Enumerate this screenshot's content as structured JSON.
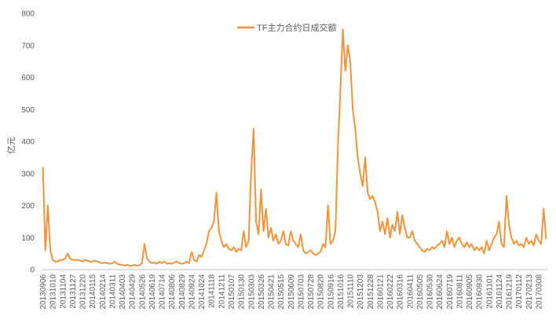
{
  "chart_data": {
    "type": "line",
    "y_label": "亿元",
    "series": [
      {
        "name": "TF主力合约日成交额",
        "color": "#f39339",
        "values": [
          320,
          60,
          200,
          60,
          30,
          25,
          25,
          30,
          30,
          35,
          50,
          35,
          30,
          30,
          30,
          28,
          25,
          30,
          28,
          25,
          25,
          28,
          25,
          22,
          20,
          22,
          20,
          18,
          20,
          25,
          18,
          15,
          15,
          12,
          15,
          12,
          12,
          15,
          12,
          14,
          20,
          80,
          35,
          25,
          20,
          22,
          18,
          25,
          20,
          25,
          18,
          20,
          18,
          22,
          25,
          20,
          18,
          20,
          25,
          20,
          55,
          30,
          25,
          45,
          40,
          60,
          80,
          120,
          130,
          150,
          240,
          120,
          90,
          70,
          80,
          65,
          60,
          70,
          55,
          65,
          60,
          120,
          70,
          90,
          300,
          440,
          150,
          110,
          250,
          120,
          190,
          100,
          130,
          90,
          110,
          80,
          90,
          120,
          80,
          75,
          120,
          90,
          80,
          70,
          110,
          60,
          50,
          55,
          60,
          50,
          45,
          50,
          55,
          80,
          70,
          200,
          80,
          90,
          120,
          380,
          560,
          750,
          620,
          700,
          650,
          500,
          440,
          350,
          300,
          260,
          350,
          240,
          220,
          230,
          210,
          180,
          120,
          150,
          110,
          160,
          100,
          140,
          120,
          180,
          110,
          170,
          130,
          100,
          100,
          120,
          90,
          80,
          70,
          60,
          55,
          65,
          60,
          70,
          65,
          75,
          80,
          90,
          70,
          120,
          80,
          100,
          70,
          90,
          100,
          80,
          70,
          85,
          70,
          80,
          60,
          70,
          60,
          70,
          50,
          90,
          60,
          80,
          100,
          110,
          150,
          80,
          70,
          230,
          140,
          100,
          80,
          90,
          75,
          80,
          70,
          100,
          80,
          90,
          75,
          110,
          90,
          80,
          190,
          95
        ]
      }
    ],
    "categories": [
      "20130906",
      null,
      null,
      null,
      "20131010",
      null,
      null,
      null,
      "20131104",
      null,
      null,
      null,
      "20131127",
      null,
      null,
      null,
      "20131220",
      null,
      null,
      null,
      "20140115",
      null,
      null,
      null,
      "20140214",
      null,
      null,
      null,
      "20140311",
      null,
      null,
      null,
      "20140403",
      null,
      null,
      null,
      "20140429",
      null,
      null,
      null,
      "20140526",
      null,
      null,
      null,
      "20140619",
      null,
      null,
      null,
      "20140714",
      null,
      null,
      null,
      "20140806",
      null,
      null,
      null,
      "20140829",
      null,
      null,
      null,
      "20140924",
      null,
      null,
      null,
      "20141024",
      null,
      null,
      null,
      "20141118",
      null,
      null,
      null,
      "20141211",
      null,
      null,
      null,
      "20150107",
      null,
      null,
      null,
      "20150130",
      null,
      null,
      null,
      "20150303",
      null,
      null,
      null,
      "20150326",
      null,
      null,
      null,
      "20150421",
      null,
      null,
      null,
      "20150515",
      null,
      null,
      null,
      "20150609",
      null,
      null,
      null,
      "20150703",
      null,
      null,
      null,
      "20150728",
      null,
      null,
      null,
      "20150820",
      null,
      null,
      null,
      "20150916",
      null,
      null,
      null,
      "20151016",
      null,
      null,
      null,
      "20151110",
      null,
      null,
      null,
      "20151203",
      null,
      null,
      null,
      "20151228",
      null,
      null,
      null,
      "20160121",
      null,
      null,
      null,
      "20160222",
      null,
      null,
      null,
      "20160316",
      null,
      null,
      null,
      "20160411",
      null,
      null,
      null,
      "20160505",
      null,
      null,
      null,
      "20160530",
      null,
      null,
      null,
      "20160624",
      null,
      null,
      null,
      "20160719",
      null,
      null,
      null,
      "20160811",
      null,
      null,
      null,
      "20160905",
      null,
      null,
      null,
      "20160930",
      null,
      null,
      null,
      "20161101",
      null,
      null,
      null,
      "20161124",
      null,
      null,
      null,
      "20161219",
      null,
      null,
      null,
      "20170112",
      null,
      null,
      null,
      "20170213",
      null,
      null,
      null,
      "20170308",
      null,
      null,
      null
    ],
    "ylim": [
      0,
      800
    ],
    "yticks": [
      0,
      100,
      200,
      300,
      400,
      500,
      600,
      700,
      800
    ],
    "legend": "top",
    "grid": false
  }
}
